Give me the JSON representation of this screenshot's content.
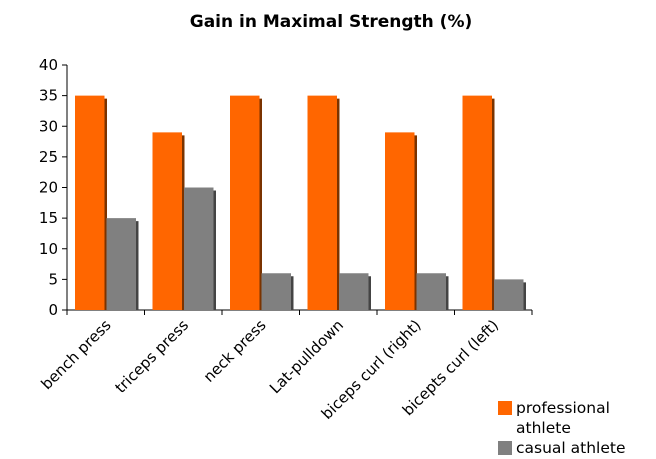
{
  "chart_data": {
    "type": "bar",
    "title": "Gain in Maximal Strength (%)",
    "xlabel": "",
    "ylabel": "",
    "categories": [
      "bench press",
      "triceps press",
      "neck press",
      "Lat-pulldown",
      "biceps curl (right)",
      "bicepts curl (left)"
    ],
    "series": [
      {
        "name": "professional athlete",
        "color": "#ff6600",
        "values": [
          35,
          29,
          35,
          35,
          29,
          35
        ]
      },
      {
        "name": "casual athlete",
        "color": "#808080",
        "values": [
          15,
          20,
          6,
          6,
          6,
          5
        ]
      }
    ],
    "ylim": [
      0,
      40
    ],
    "yticks": [
      0,
      5,
      10,
      15,
      20,
      25,
      30,
      35,
      40
    ],
    "grid": false,
    "legend": "bottom-right"
  }
}
